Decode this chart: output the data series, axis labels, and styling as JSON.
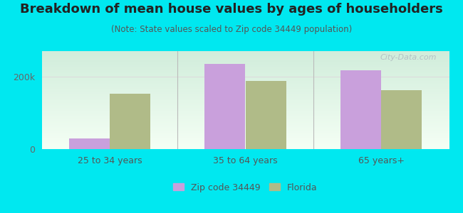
{
  "title": "Breakdown of mean house values by ages of householders",
  "subtitle": "(Note: State values scaled to Zip code 34449 population)",
  "categories": [
    "25 to 34 years",
    "35 to 64 years",
    "65 years+"
  ],
  "zip_values": [
    30000,
    235000,
    218000
  ],
  "fl_values": [
    152000,
    188000,
    162000
  ],
  "zip_color": "#c9a0dc",
  "fl_color": "#b0bb88",
  "background_color": "#00e8f0",
  "ylim": [
    0,
    270000
  ],
  "yticks": [
    0,
    200000
  ],
  "ytick_labels": [
    "0",
    "200k"
  ],
  "bar_width": 0.3,
  "legend_labels": [
    "Zip code 34449",
    "Florida"
  ],
  "watermark": "City-Data.com",
  "title_fontsize": 13,
  "subtitle_fontsize": 8.5,
  "tick_fontsize": 9,
  "legend_fontsize": 9
}
